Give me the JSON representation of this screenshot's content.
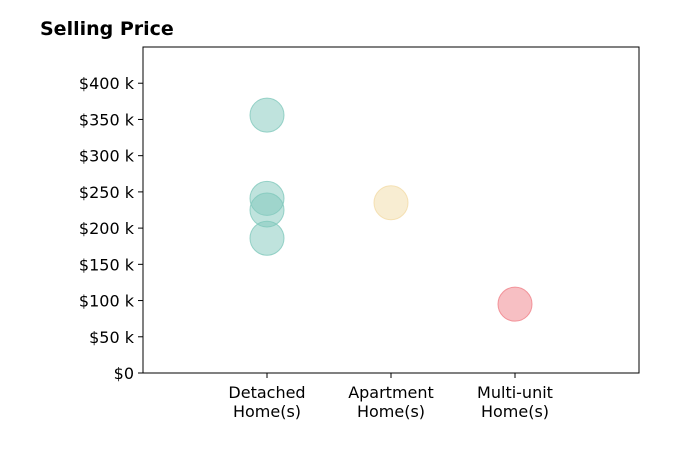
{
  "chart_data": {
    "type": "scatter",
    "title": "Selling Price",
    "xlabel": "",
    "ylabel": "",
    "categories": [
      [
        "Detached",
        "Home(s)"
      ],
      [
        "Apartment",
        "Home(s)"
      ],
      [
        "Multi-unit",
        "Home(s)"
      ]
    ],
    "xlim": [
      -1,
      3
    ],
    "ylim": [
      0,
      450000
    ],
    "yticks": [
      0,
      50000,
      100000,
      150000,
      200000,
      250000,
      300000,
      350000,
      400000
    ],
    "ytick_labels": [
      "$0",
      "$50 k",
      "$100 k",
      "$150 k",
      "$200 k",
      "$250 k",
      "$300 k",
      "$350 k",
      "$400 k"
    ],
    "grid": false,
    "points": [
      {
        "category": 0,
        "value": 356000,
        "color": "#80c8bc"
      },
      {
        "category": 0,
        "value": 241000,
        "color": "#80c8bc"
      },
      {
        "category": 0,
        "value": 225000,
        "color": "#80c8bc"
      },
      {
        "category": 0,
        "value": 186000,
        "color": "#80c8bc"
      },
      {
        "category": 1,
        "value": 235000,
        "color": "#f2dba6"
      },
      {
        "category": 2,
        "value": 95000,
        "color": "#f07f87"
      }
    ],
    "marker_opacity": 0.5
  }
}
